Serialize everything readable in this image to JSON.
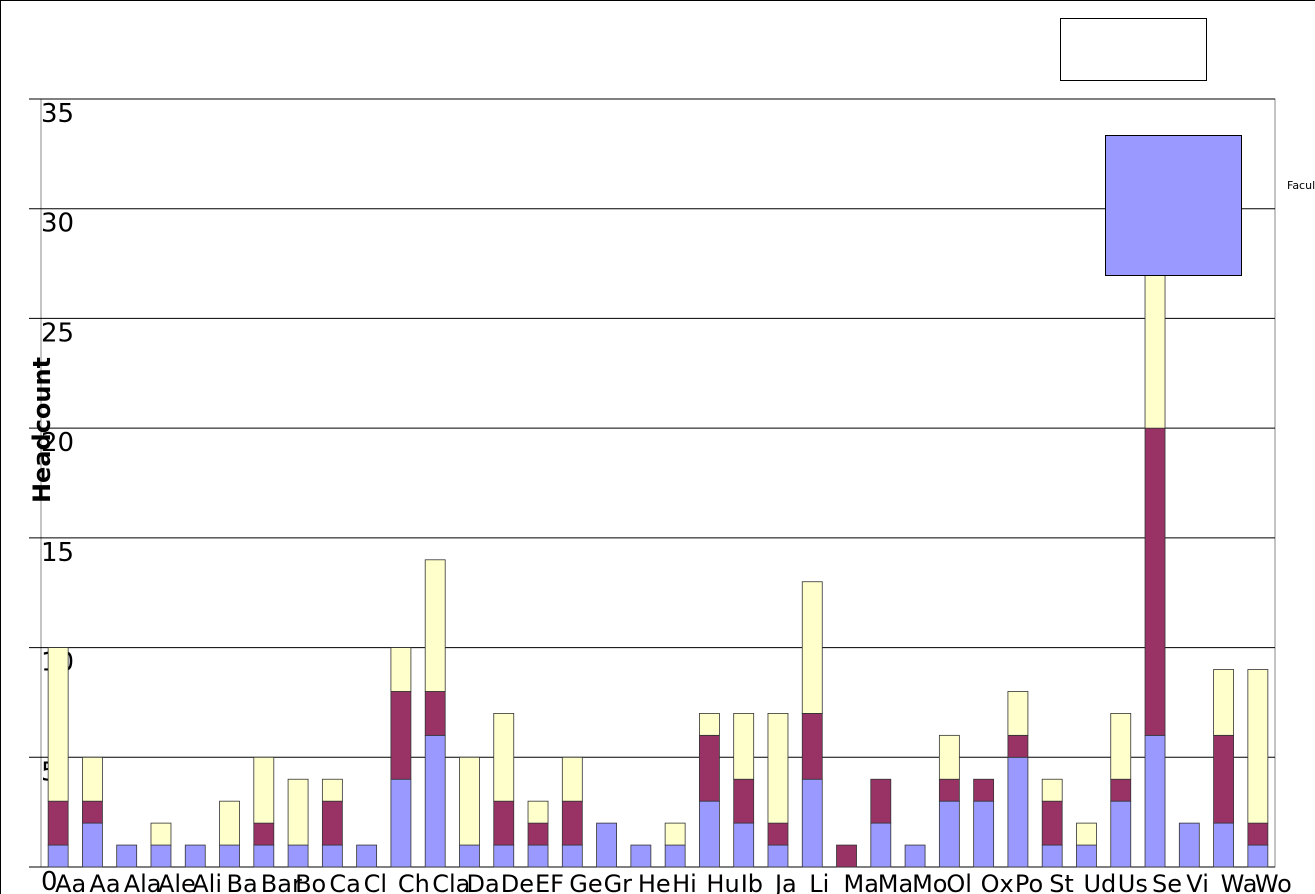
{
  "chart_data": {
    "type": "bar",
    "stacked": true,
    "y_label": "Headcount",
    "categories": [
      "Aa",
      "Aa",
      "Ala",
      "Ale",
      "Ali",
      "Ba",
      "Bar",
      "Bo",
      "Ca",
      "Cl",
      "Ch",
      "Cla",
      "Da",
      "De",
      "EF",
      "Ge",
      "Gr",
      "He",
      "Hi",
      "Hu",
      "Ib",
      "Ja",
      "Li",
      "Ma",
      "Ma",
      "Mo",
      "Ol",
      "Ox",
      "Po",
      "St",
      "Ud",
      "Us",
      "Se",
      "Vi",
      "Wa",
      "Wo"
    ],
    "series": [
      {
        "name": "Faculty",
        "color": "#9999ff",
        "values": [
          1,
          2,
          1,
          1,
          1,
          1,
          1,
          1,
          1,
          1,
          4,
          6,
          1,
          1,
          1,
          1,
          2,
          1,
          1,
          3,
          2,
          1,
          4,
          0,
          2,
          1,
          3,
          3,
          5,
          1,
          1,
          3,
          6,
          2,
          2,
          1
        ]
      },
      {
        "color": "#993366",
        "values": [
          2,
          1,
          0,
          0,
          0,
          0,
          1,
          0,
          2,
          0,
          4,
          2,
          0,
          2,
          1,
          2,
          0,
          0,
          0,
          3,
          2,
          1,
          3,
          1,
          2,
          0,
          1,
          1,
          1,
          2,
          0,
          1,
          14,
          0,
          4,
          1
        ]
      },
      {
        "color": "#ffffcc",
        "values": [
          7,
          2,
          0,
          1,
          0,
          2,
          3,
          3,
          1,
          0,
          2,
          6,
          4,
          4,
          1,
          2,
          0,
          0,
          1,
          1,
          3,
          5,
          6,
          0,
          0,
          0,
          2,
          0,
          2,
          1,
          1,
          3,
          7,
          0,
          3,
          7
        ]
      }
    ],
    "ylim": [
      0,
      35
    ],
    "yticks": [
      0,
      5,
      10,
      15,
      20,
      25,
      30,
      35
    ],
    "grid": true
  }
}
